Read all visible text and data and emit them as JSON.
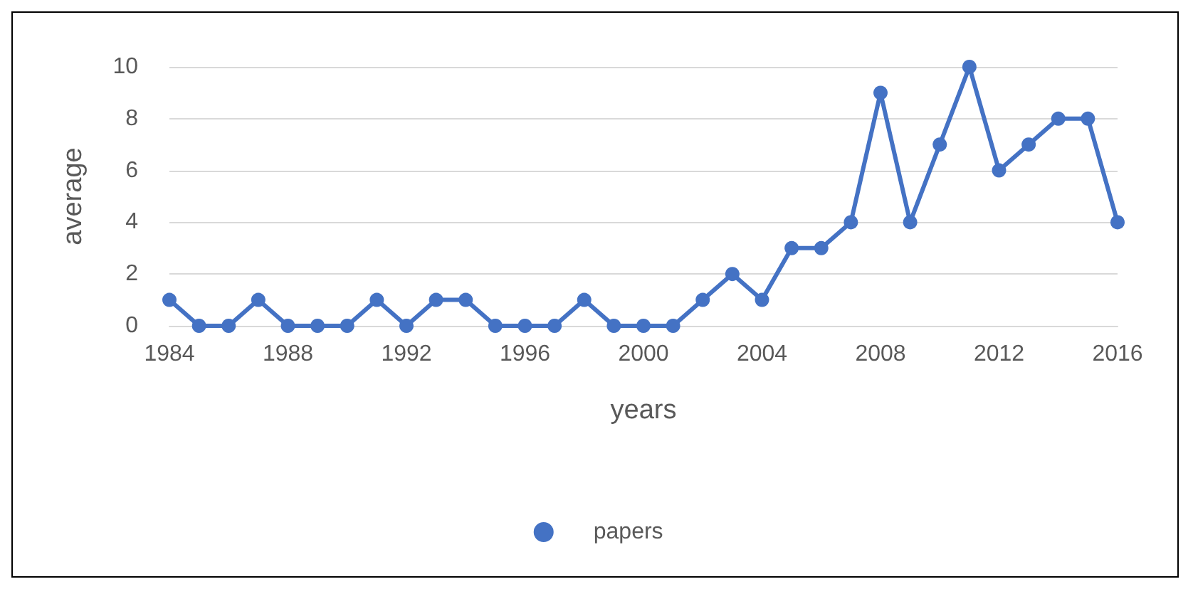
{
  "chart_data": {
    "type": "line",
    "xlabel": "years",
    "ylabel": "average",
    "x": [
      1984,
      1985,
      1986,
      1987,
      1988,
      1989,
      1990,
      1991,
      1992,
      1993,
      1994,
      1995,
      1996,
      1997,
      1998,
      1999,
      2000,
      2001,
      2002,
      2003,
      2004,
      2005,
      2006,
      2007,
      2008,
      2009,
      2010,
      2011,
      2012,
      2013,
      2014,
      2015,
      2016
    ],
    "series": [
      {
        "name": "papers",
        "color": "#4472c4",
        "values": [
          1,
          0,
          0,
          1,
          0,
          0,
          0,
          1,
          0,
          1,
          1,
          0,
          0,
          0,
          1,
          0,
          0,
          0,
          1,
          2,
          1,
          3,
          3,
          4,
          9,
          4,
          7,
          10,
          6,
          7,
          8,
          8,
          4
        ]
      }
    ],
    "xlim": [
      1984,
      2016
    ],
    "xticks": [
      1984,
      1988,
      1992,
      1996,
      2000,
      2004,
      2008,
      2012,
      2016
    ],
    "ylim": [
      0,
      10
    ],
    "yticks": [
      0,
      2,
      4,
      6,
      8,
      10
    ],
    "grid": "y",
    "legend": "bottom",
    "marker": "circle",
    "line_style": "solid"
  }
}
